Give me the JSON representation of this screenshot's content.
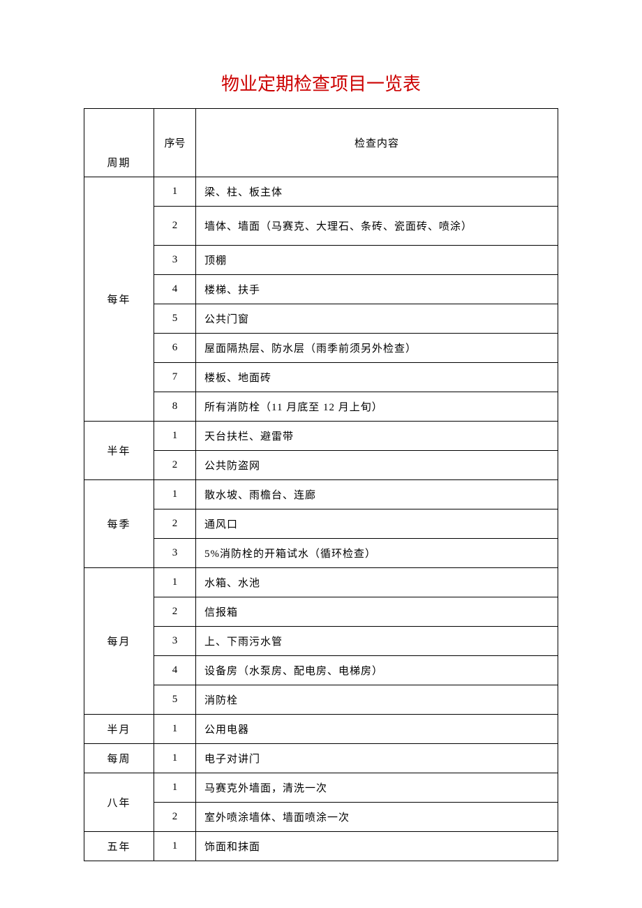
{
  "title": "物业定期检查项目一览表",
  "title_color": "#cc0000",
  "title_fontsize": 26,
  "body_fontsize": 15,
  "text_color": "#000000",
  "background_color": "#ffffff",
  "border_color": "#000000",
  "columns": {
    "period": "周期",
    "seq": "序号",
    "content": "检查内容",
    "period_width": 100,
    "seq_width": 60
  },
  "rows": [
    {
      "period": "每年",
      "seq": "1",
      "content": "梁、柱、板主体",
      "tall": false
    },
    {
      "period": "每年",
      "seq": "2",
      "content": "墙体、墙面（马赛克、大理石、条砖、瓷面砖、喷涂）",
      "tall": true
    },
    {
      "period": "每年",
      "seq": "3",
      "content": "顶棚",
      "tall": false
    },
    {
      "period": "每年",
      "seq": "4",
      "content": "楼梯、扶手",
      "tall": false
    },
    {
      "period": "每年",
      "seq": "5",
      "content": "公共门窗",
      "tall": false
    },
    {
      "period": "每年",
      "seq": "6",
      "content": "屋面隔热层、防水层（雨季前须另外检查）",
      "tall": false
    },
    {
      "period": "每年",
      "seq": "7",
      "content": "楼板、地面砖",
      "tall": false
    },
    {
      "period": "每年",
      "seq": "8",
      "content": "所有消防栓（11 月底至 12 月上旬）",
      "tall": false
    },
    {
      "period": "半年",
      "seq": "1",
      "content": "天台扶栏、避雷带",
      "tall": false
    },
    {
      "period": "半年",
      "seq": "2",
      "content": "公共防盗网",
      "tall": false
    },
    {
      "period": "每季",
      "seq": "1",
      "content": "散水坡、雨檐台、连廊",
      "tall": false
    },
    {
      "period": "每季",
      "seq": "2",
      "content": "通风口",
      "tall": false
    },
    {
      "period": "每季",
      "seq": "3",
      "content": "5%消防栓的开箱试水（循环检查）",
      "tall": false
    },
    {
      "period": "每月",
      "seq": "1",
      "content": "水箱、水池",
      "tall": false
    },
    {
      "period": "每月",
      "seq": "2",
      "content": "信报箱",
      "tall": false
    },
    {
      "period": "每月",
      "seq": "3",
      "content": "上、下雨污水管",
      "tall": false
    },
    {
      "period": "每月",
      "seq": "4",
      "content": "设备房（水泵房、配电房、电梯房）",
      "tall": false
    },
    {
      "period": "每月",
      "seq": "5",
      "content": "消防栓",
      "tall": false
    },
    {
      "period": "半月",
      "seq": "1",
      "content": "公用电器",
      "tall": false
    },
    {
      "period": "每周",
      "seq": "1",
      "content": "电子对讲门",
      "tall": false
    },
    {
      "period": "八年",
      "seq": "1",
      "content": "马赛克外墙面，清洗一次",
      "tall": false
    },
    {
      "period": "八年",
      "seq": "2",
      "content": "室外喷涂墙体、墙面喷涂一次",
      "tall": false
    },
    {
      "period": "五年",
      "seq": "1",
      "content": "饰面和抹面",
      "tall": false
    }
  ]
}
